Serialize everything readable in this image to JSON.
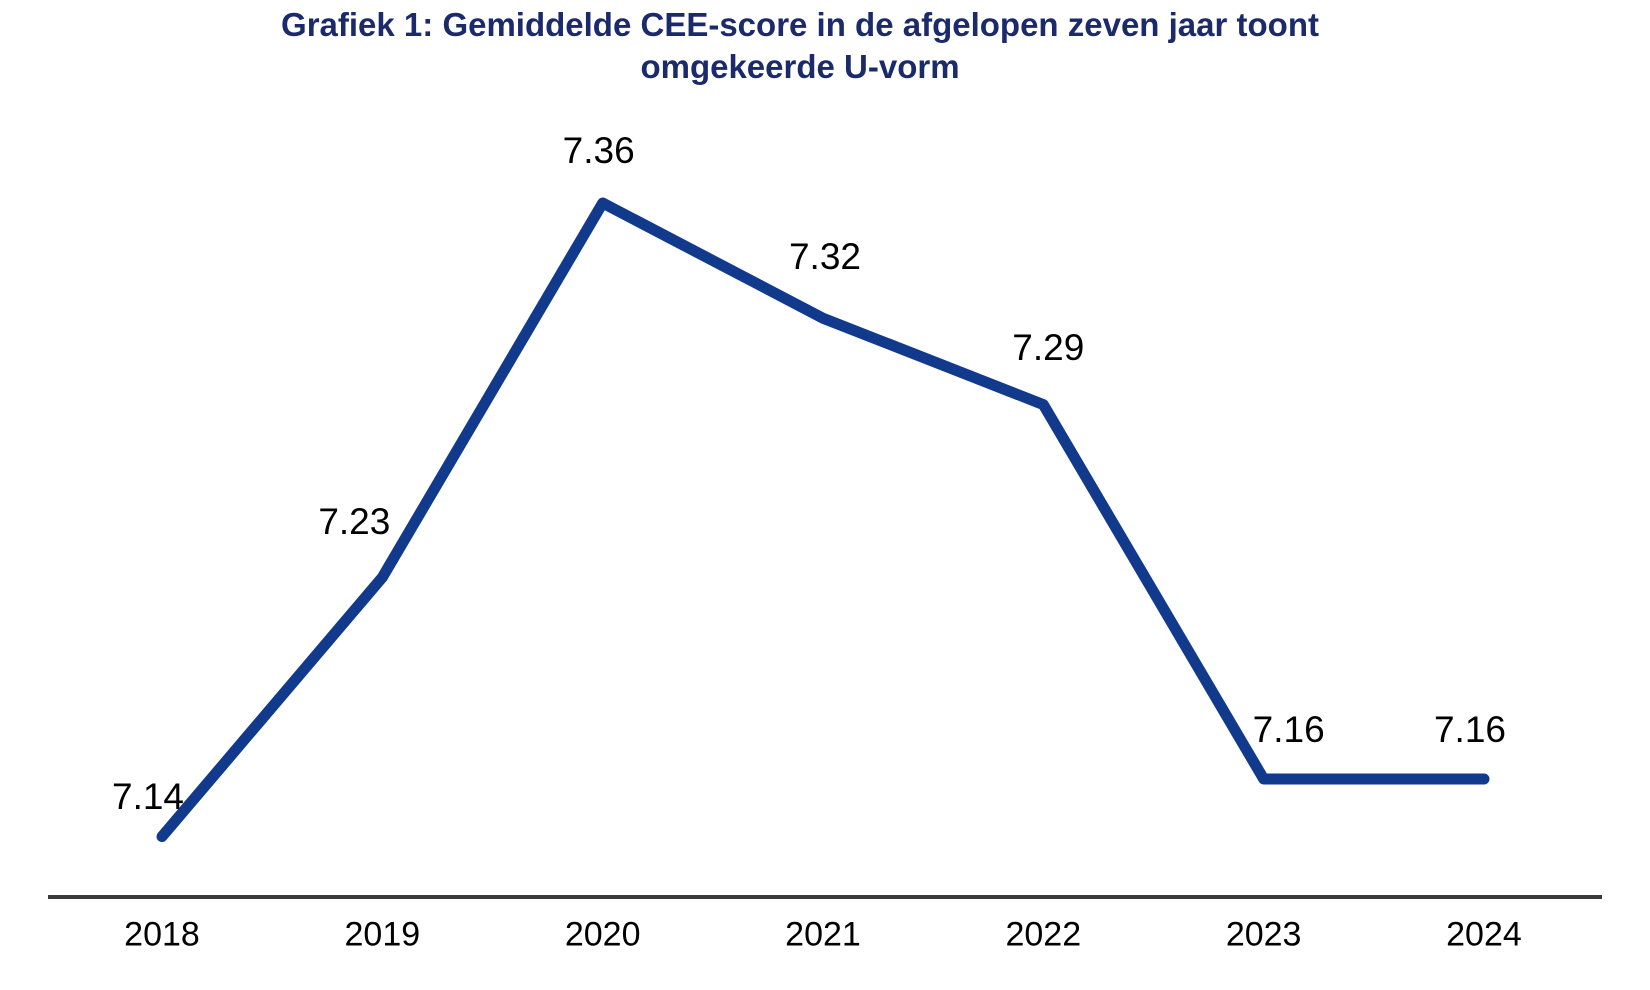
{
  "title": {
    "text": "Grafiek 1: Gemiddelde CEE-score in de afgelopen zeven jaar toont omgekeerde U-vorm",
    "lines": [
      "Grafiek 1: Gemiddelde CEE-score in de afgelopen zeven jaar toont",
      "omgekeerde U-vorm"
    ],
    "color": "#1B2A6B"
  },
  "chart_data": {
    "type": "line",
    "title": "Grafiek 1: Gemiddelde CEE-score in de afgelopen zeven jaar toont omgekeerde U-vorm",
    "categories": [
      "2018",
      "2019",
      "2020",
      "2021",
      "2022",
      "2023",
      "2024"
    ],
    "values": [
      7.14,
      7.23,
      7.36,
      7.32,
      7.29,
      7.16,
      7.16
    ],
    "data_labels": [
      "7.14",
      "7.23",
      "7.36",
      "7.32",
      "7.29",
      "7.16",
      "7.16"
    ],
    "xlabel": "",
    "ylabel": "",
    "ylim_estimate": [
      7.12,
      7.37
    ],
    "y_axis_visible": false,
    "x_axis_visible": true,
    "grid": false,
    "legend": "none",
    "colors": {
      "line": "#113A8C",
      "title": "#1B2A6B",
      "axis_line": "#3A3A3A",
      "labels": "#000000",
      "background": "#FFFFFF"
    }
  }
}
